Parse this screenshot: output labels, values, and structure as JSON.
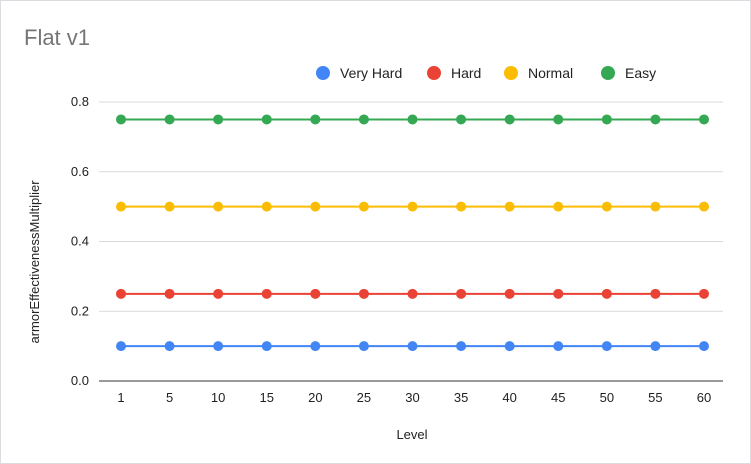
{
  "chart_data": {
    "type": "line",
    "title": "Flat v1",
    "xlabel": "Level",
    "ylabel": "armorEffectivenessMultiplier",
    "categories": [
      "1",
      "5",
      "10",
      "15",
      "20",
      "25",
      "30",
      "35",
      "40",
      "45",
      "50",
      "55",
      "60"
    ],
    "ylim": [
      0,
      0.8
    ],
    "yticks": [
      "0.0",
      "0.2",
      "0.4",
      "0.6",
      "0.8"
    ],
    "grid": true,
    "legend_position": "top",
    "series": [
      {
        "name": "Very Hard",
        "color": "#4285f4",
        "values": [
          0.1,
          0.1,
          0.1,
          0.1,
          0.1,
          0.1,
          0.1,
          0.1,
          0.1,
          0.1,
          0.1,
          0.1,
          0.1
        ]
      },
      {
        "name": "Hard",
        "color": "#ea4335",
        "values": [
          0.25,
          0.25,
          0.25,
          0.25,
          0.25,
          0.25,
          0.25,
          0.25,
          0.25,
          0.25,
          0.25,
          0.25,
          0.25
        ]
      },
      {
        "name": "Normal",
        "color": "#fbbc04",
        "values": [
          0.5,
          0.5,
          0.5,
          0.5,
          0.5,
          0.5,
          0.5,
          0.5,
          0.5,
          0.5,
          0.5,
          0.5,
          0.5
        ]
      },
      {
        "name": "Easy",
        "color": "#34a853",
        "values": [
          0.75,
          0.75,
          0.75,
          0.75,
          0.75,
          0.75,
          0.75,
          0.75,
          0.75,
          0.75,
          0.75,
          0.75,
          0.75
        ]
      }
    ]
  }
}
